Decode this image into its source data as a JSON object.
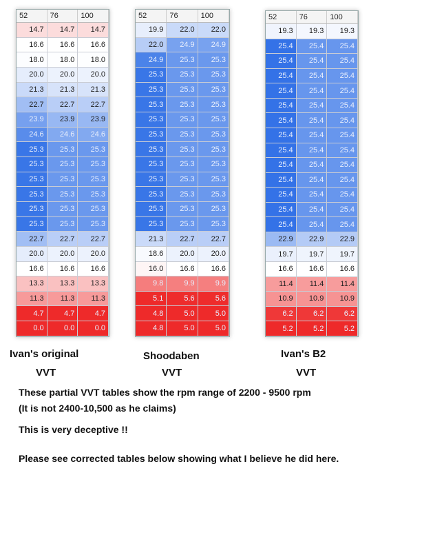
{
  "tables": [
    {
      "columns": [
        "52",
        "76",
        "100"
      ],
      "title": "Ivan's original",
      "subtitle": "VVT",
      "rows": [
        [
          14.7,
          14.7,
          14.7
        ],
        [
          16.6,
          16.6,
          16.6
        ],
        [
          18.0,
          18.0,
          18.0
        ],
        [
          20.0,
          20.0,
          20.0
        ],
        [
          21.3,
          21.3,
          21.3
        ],
        [
          22.7,
          22.7,
          22.7
        ],
        [
          23.9,
          23.9,
          23.9
        ],
        [
          24.6,
          24.6,
          24.6
        ],
        [
          25.3,
          25.3,
          25.3
        ],
        [
          25.3,
          25.3,
          25.3
        ],
        [
          25.3,
          25.3,
          25.3
        ],
        [
          25.3,
          25.3,
          25.3
        ],
        [
          25.3,
          25.3,
          25.3
        ],
        [
          25.3,
          25.3,
          25.3
        ],
        [
          22.7,
          22.7,
          22.7
        ],
        [
          20.0,
          20.0,
          20.0
        ],
        [
          16.6,
          16.6,
          16.6
        ],
        [
          13.3,
          13.3,
          13.3
        ],
        [
          11.3,
          11.3,
          11.3
        ],
        [
          4.7,
          4.7,
          4.7
        ],
        [
          0.0,
          0.0,
          0.0
        ]
      ]
    },
    {
      "columns": [
        "52",
        "76",
        "100"
      ],
      "title": "Shoodaben",
      "subtitle": "VVT",
      "rows": [
        [
          19.9,
          22.0,
          22.0
        ],
        [
          22.0,
          24.9,
          24.9
        ],
        [
          24.9,
          25.3,
          25.3
        ],
        [
          25.3,
          25.3,
          25.3
        ],
        [
          25.3,
          25.3,
          25.3
        ],
        [
          25.3,
          25.3,
          25.3
        ],
        [
          25.3,
          25.3,
          25.3
        ],
        [
          25.3,
          25.3,
          25.3
        ],
        [
          25.3,
          25.3,
          25.3
        ],
        [
          25.3,
          25.3,
          25.3
        ],
        [
          25.3,
          25.3,
          25.3
        ],
        [
          25.3,
          25.3,
          25.3
        ],
        [
          25.3,
          25.3,
          25.3
        ],
        [
          25.3,
          25.3,
          25.3
        ],
        [
          21.3,
          22.7,
          22.7
        ],
        [
          18.6,
          20.0,
          20.0
        ],
        [
          16.0,
          16.6,
          16.6
        ],
        [
          9.8,
          9.9,
          9.9
        ],
        [
          5.1,
          5.6,
          5.6
        ],
        [
          4.8,
          5.0,
          5.0
        ],
        [
          4.8,
          5.0,
          5.0
        ]
      ]
    },
    {
      "columns": [
        "52",
        "76",
        "100"
      ],
      "title": "Ivan's B2",
      "subtitle": "VVT",
      "rows": [
        [
          19.3,
          19.3,
          19.3
        ],
        [
          25.4,
          25.4,
          25.4
        ],
        [
          25.4,
          25.4,
          25.4
        ],
        [
          25.4,
          25.4,
          25.4
        ],
        [
          25.4,
          25.4,
          25.4
        ],
        [
          25.4,
          25.4,
          25.4
        ],
        [
          25.4,
          25.4,
          25.4
        ],
        [
          25.4,
          25.4,
          25.4
        ],
        [
          25.4,
          25.4,
          25.4
        ],
        [
          25.4,
          25.4,
          25.4
        ],
        [
          25.4,
          25.4,
          25.4
        ],
        [
          25.4,
          25.4,
          25.4
        ],
        [
          25.4,
          25.4,
          25.4
        ],
        [
          25.4,
          25.4,
          25.4
        ],
        [
          22.9,
          22.9,
          22.9
        ],
        [
          19.7,
          19.7,
          19.7
        ],
        [
          16.6,
          16.6,
          16.6
        ],
        [
          11.4,
          11.4,
          11.4
        ],
        [
          10.9,
          10.9,
          10.9
        ],
        [
          6.2,
          6.2,
          6.2
        ],
        [
          5.2,
          5.2,
          5.2
        ]
      ]
    }
  ],
  "notes": {
    "line1": "These partial VVT tables show the rpm range of 2200 - 9500 rpm",
    "line2": "(It is not 2400-10,500 as he claims)",
    "line3": "This is very deceptive !!",
    "line4": "Please see corrected tables below showing what I believe he did here."
  },
  "colors": {
    "high": "#2f6fe6",
    "low": "#ee2a2a"
  }
}
